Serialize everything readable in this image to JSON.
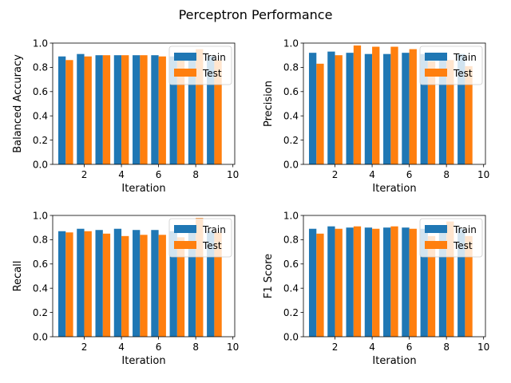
{
  "figure": {
    "title": "Perceptron Performance"
  },
  "legend_labels": [
    "Train",
    "Test"
  ],
  "colors": {
    "train": "#1f77b4",
    "test": "#ff7f0e"
  },
  "chart_data": [
    {
      "type": "bar",
      "ylabel": "Balanced Accuracy",
      "xlabel": "Iteration",
      "x": [
        1,
        2,
        3,
        4,
        5,
        6,
        7,
        8,
        9
      ],
      "ylim": [
        0,
        1
      ],
      "xlim": [
        0.3,
        10.1
      ],
      "xticks": [
        2,
        4,
        6,
        8,
        10
      ],
      "yticks": [
        0.0,
        0.2,
        0.4,
        0.6,
        0.8,
        1.0
      ],
      "legend": "upper right",
      "series": [
        {
          "name": "Train",
          "values": [
            0.89,
            0.91,
            0.9,
            0.9,
            0.9,
            0.9,
            0.89,
            0.9,
            0.89
          ]
        },
        {
          "name": "Test",
          "values": [
            0.86,
            0.89,
            0.9,
            0.9,
            0.9,
            0.89,
            0.86,
            0.95,
            0.86
          ]
        }
      ]
    },
    {
      "type": "bar",
      "ylabel": "Precision",
      "xlabel": "Iteration",
      "x": [
        1,
        2,
        3,
        4,
        5,
        6,
        7,
        8,
        9
      ],
      "ylim": [
        0,
        1
      ],
      "xlim": [
        0.3,
        10.1
      ],
      "xticks": [
        2,
        4,
        6,
        8,
        10
      ],
      "yticks": [
        0.0,
        0.2,
        0.4,
        0.6,
        0.8,
        1.0
      ],
      "legend": "upper right",
      "series": [
        {
          "name": "Train",
          "values": [
            0.92,
            0.93,
            0.92,
            0.91,
            0.91,
            0.92,
            0.91,
            0.9,
            0.91
          ]
        },
        {
          "name": "Test",
          "values": [
            0.83,
            0.9,
            0.98,
            0.97,
            0.97,
            0.95,
            0.85,
            0.86,
            0.81
          ]
        }
      ]
    },
    {
      "type": "bar",
      "ylabel": "Recall",
      "xlabel": "Iteration",
      "x": [
        1,
        2,
        3,
        4,
        5,
        6,
        7,
        8,
        9
      ],
      "ylim": [
        0,
        1
      ],
      "xlim": [
        0.3,
        10.1
      ],
      "xticks": [
        2,
        4,
        6,
        8,
        10
      ],
      "yticks": [
        0.0,
        0.2,
        0.4,
        0.6,
        0.8,
        1.0
      ],
      "legend": "upper right",
      "series": [
        {
          "name": "Train",
          "values": [
            0.87,
            0.89,
            0.88,
            0.89,
            0.88,
            0.88,
            0.87,
            0.88,
            0.87
          ]
        },
        {
          "name": "Test",
          "values": [
            0.86,
            0.87,
            0.85,
            0.83,
            0.84,
            0.84,
            0.82,
            0.98,
            0.86
          ]
        }
      ]
    },
    {
      "type": "bar",
      "ylabel": "F1 Score",
      "xlabel": "Iteration",
      "x": [
        1,
        2,
        3,
        4,
        5,
        6,
        7,
        8,
        9
      ],
      "ylim": [
        0,
        1
      ],
      "xlim": [
        0.3,
        10.1
      ],
      "xticks": [
        2,
        4,
        6,
        8,
        10
      ],
      "yticks": [
        0.0,
        0.2,
        0.4,
        0.6,
        0.8,
        1.0
      ],
      "legend": "upper right",
      "series": [
        {
          "name": "Train",
          "values": [
            0.89,
            0.91,
            0.9,
            0.9,
            0.9,
            0.9,
            0.89,
            0.88,
            0.89
          ]
        },
        {
          "name": "Test",
          "values": [
            0.85,
            0.89,
            0.91,
            0.89,
            0.91,
            0.89,
            0.83,
            0.95,
            0.83
          ]
        }
      ]
    }
  ]
}
